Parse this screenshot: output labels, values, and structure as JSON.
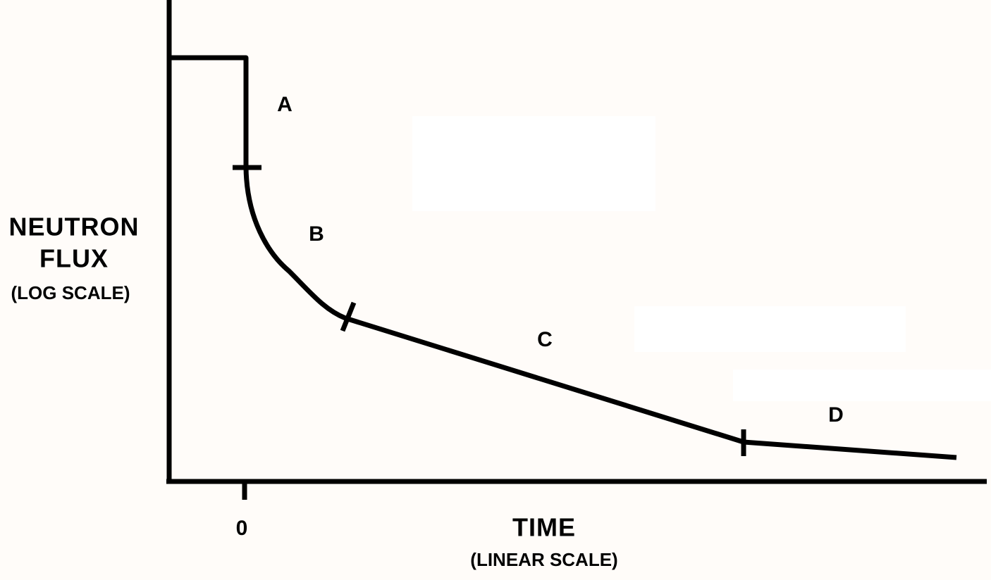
{
  "y_axis": {
    "lines": [
      "NEUTRON",
      "FLUX",
      "(LOG SCALE)"
    ]
  },
  "x_axis": {
    "title": "TIME",
    "subtitle": "(LINEAR SCALE)",
    "origin_label": "0"
  },
  "regions": [
    "A",
    "B",
    "C",
    "D"
  ]
}
